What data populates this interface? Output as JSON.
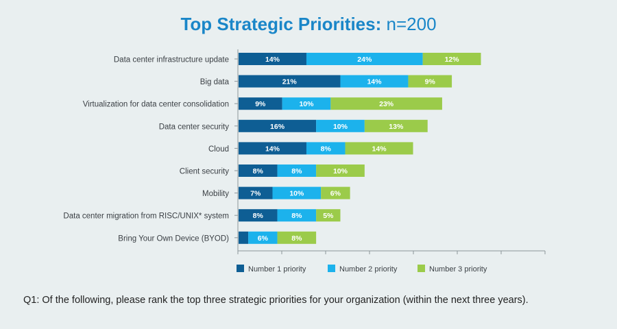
{
  "title_bold": "Top Strategic Priorities:",
  "title_light": "n=200",
  "footnote": "Q1: Of the following, please rank the top three strategic priorities for your organization (within the next three years).",
  "colors": {
    "number1": "#0e5e94",
    "number2": "#1cb2ec",
    "number3": "#9bcb4a"
  },
  "chart_data": {
    "type": "bar",
    "orientation": "horizontal",
    "stacked": true,
    "title": "Top Strategic Priorities: n=200",
    "categories": [
      "Data center infrastructure update",
      "Big data",
      "Virtualization for data center consolidation",
      "Data center security",
      "Cloud",
      "Client security",
      "Mobility",
      "Data center migration from RISC/UNIX* system",
      "Bring Your Own Device (BYOD)"
    ],
    "series": [
      {
        "name": "Number 1 priority",
        "values": [
          14,
          21,
          9,
          16,
          14,
          8,
          7,
          8,
          2
        ],
        "labels": [
          "14%",
          "21%",
          "9%",
          "16%",
          "14%",
          "8%",
          "7%",
          "8%",
          ""
        ]
      },
      {
        "name": "Number 2 priority",
        "values": [
          24,
          14,
          10,
          10,
          8,
          8,
          10,
          8,
          6
        ],
        "labels": [
          "24%",
          "14%",
          "10%",
          "10%",
          "8%",
          "8%",
          "10%",
          "8%",
          "6%"
        ]
      },
      {
        "name": "Number 3 priority",
        "values": [
          12,
          9,
          23,
          13,
          14,
          10,
          6,
          5,
          8
        ],
        "labels": [
          "12%",
          "9%",
          "23%",
          "13%",
          "14%",
          "10%",
          "6%",
          "5%",
          "8%"
        ]
      }
    ],
    "xlim": [
      0,
      70
    ],
    "legend_position": "bottom",
    "grid": false
  }
}
